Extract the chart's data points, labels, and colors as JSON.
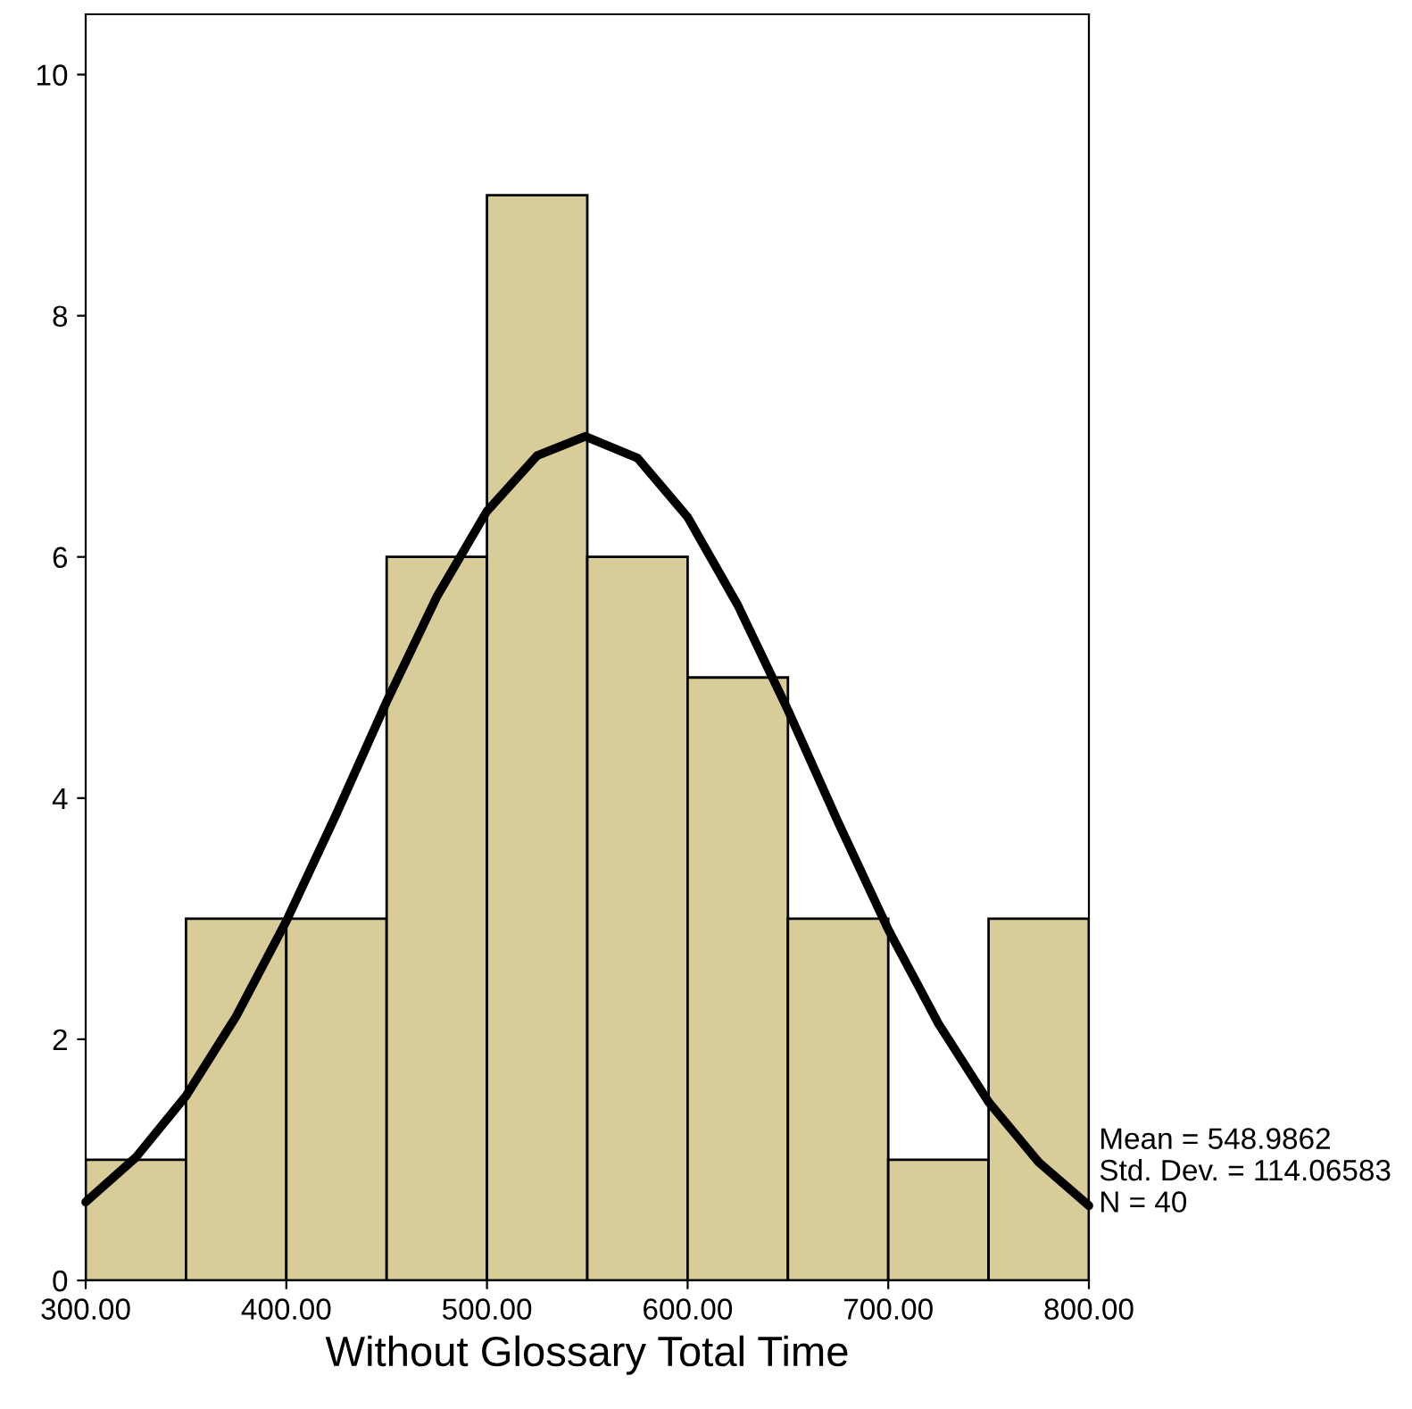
{
  "chart_data": {
    "type": "histogram",
    "xlabel": "Without Glossary Total Time",
    "bins": [
      300,
      350,
      400,
      450,
      500,
      550,
      600,
      650,
      700,
      750,
      800
    ],
    "values": [
      1,
      3,
      3,
      6,
      9,
      6,
      5,
      3,
      1,
      3
    ],
    "color": "#d8cc99",
    "series": [
      {
        "type": "line",
        "color": "#000000",
        "x": [
          300,
          325,
          350,
          375,
          400,
          425,
          450,
          475,
          500,
          525,
          549,
          575,
          600,
          625,
          650,
          675,
          700,
          725,
          750,
          775,
          800
        ],
        "values": [
          0.65,
          1.02,
          1.53,
          2.19,
          2.98,
          3.87,
          4.8,
          5.67,
          6.38,
          6.84,
          7.0,
          6.82,
          6.33,
          5.6,
          4.73,
          3.8,
          2.91,
          2.13,
          1.48,
          0.98,
          0.62
        ]
      }
    ],
    "xlim": [
      300,
      800
    ],
    "xticks": [
      {
        "value": 300,
        "label": "300.00"
      },
      {
        "value": 400,
        "label": "400.00"
      },
      {
        "value": 500,
        "label": "500.00"
      },
      {
        "value": 600,
        "label": "600.00"
      },
      {
        "value": 700,
        "label": "700.00"
      },
      {
        "value": 800,
        "label": "800.00"
      }
    ],
    "ylim": [
      0,
      10.5
    ],
    "yticks": [
      0,
      2,
      4,
      6,
      8,
      10
    ],
    "grid": false,
    "legend": false,
    "annotations": [
      "Mean = 548.9862",
      "Std. Dev. = 114.06583",
      "N = 40"
    ]
  }
}
